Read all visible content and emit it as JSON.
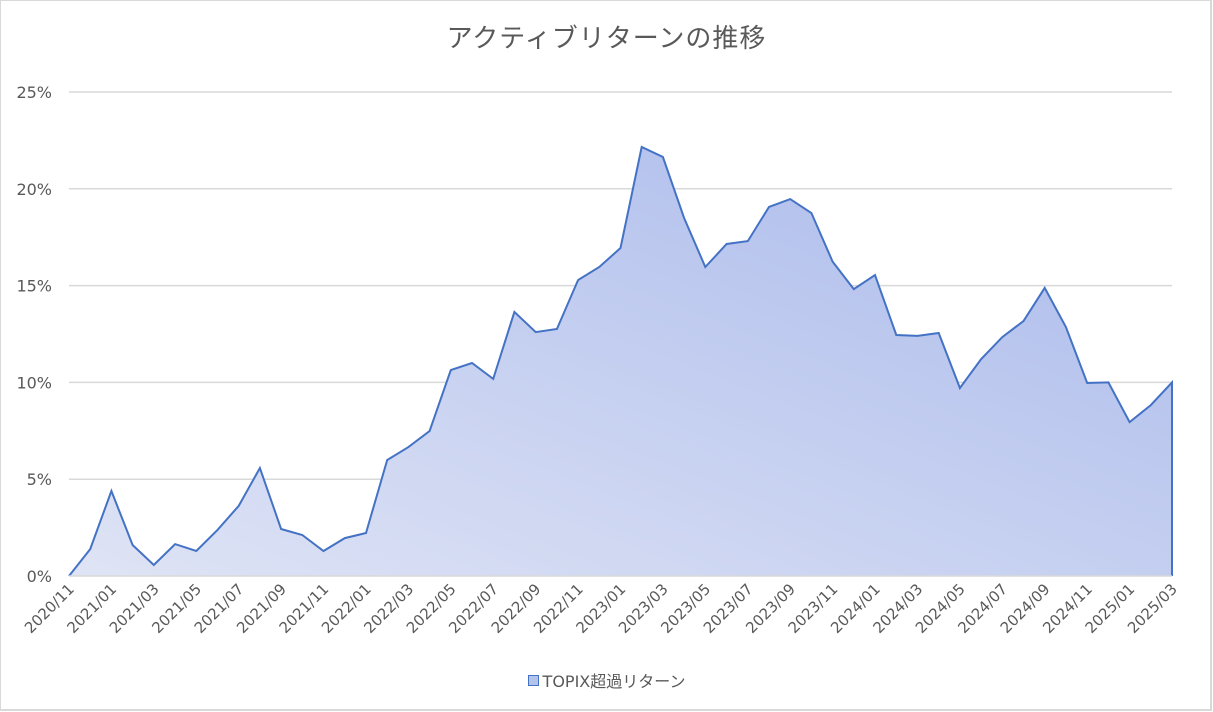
{
  "chart_data": {
    "type": "area",
    "title": "アクティブリターンの推移",
    "xlabel": "",
    "ylabel": "",
    "ylim": [
      0,
      0.25
    ],
    "y_ticks": [
      "0%",
      "5%",
      "10%",
      "15%",
      "20%",
      "25%"
    ],
    "y_tick_values": [
      0,
      5,
      10,
      15,
      20,
      25
    ],
    "grid": true,
    "legend_position": "bottom",
    "x_tick_labels": [
      "2020/11",
      "2021/01",
      "2021/03",
      "2021/05",
      "2021/07",
      "2021/09",
      "2021/11",
      "2022/01",
      "2022/03",
      "2022/05",
      "2022/07",
      "2022/09",
      "2022/11",
      "2023/01",
      "2023/03",
      "2023/05",
      "2023/07",
      "2023/09",
      "2023/11",
      "2024/01",
      "2024/03",
      "2024/05",
      "2024/07",
      "2024/09",
      "2024/11",
      "2025/01",
      "2025/03"
    ],
    "x": [
      "2020/11",
      "2020/12",
      "2021/01",
      "2021/02",
      "2021/03",
      "2021/04",
      "2021/05",
      "2021/06",
      "2021/07",
      "2021/08",
      "2021/09",
      "2021/10",
      "2021/11",
      "2021/12",
      "2022/01",
      "2022/02",
      "2022/03",
      "2022/04",
      "2022/05",
      "2022/06",
      "2022/07",
      "2022/08",
      "2022/09",
      "2022/10",
      "2022/11",
      "2022/12",
      "2023/01",
      "2023/02",
      "2023/03",
      "2023/04",
      "2023/05",
      "2023/06",
      "2023/07",
      "2023/08",
      "2023/09",
      "2023/10",
      "2023/11",
      "2023/12",
      "2024/01",
      "2024/02",
      "2024/03",
      "2024/04",
      "2024/05",
      "2024/06",
      "2024/07",
      "2024/08",
      "2024/09",
      "2024/10",
      "2024/11",
      "2024/12",
      "2025/01",
      "2025/02",
      "2025/03"
    ],
    "series": [
      {
        "name": "TOPIX超過リターン",
        "unit": "%",
        "values": [
          0.0,
          1.39,
          4.39,
          1.6,
          0.57,
          1.65,
          1.29,
          2.38,
          3.62,
          5.58,
          2.43,
          2.12,
          1.29,
          1.96,
          2.22,
          5.99,
          6.66,
          7.49,
          10.64,
          11.0,
          10.18,
          13.64,
          12.6,
          12.76,
          15.29,
          15.96,
          16.94,
          22.16,
          21.64,
          18.49,
          15.96,
          17.15,
          17.3,
          19.06,
          19.47,
          18.75,
          16.24,
          14.82,
          15.55,
          12.45,
          12.4,
          12.55,
          9.71,
          11.2,
          12.34,
          13.17,
          14.88,
          12.86,
          9.97,
          10.0,
          7.95,
          8.83,
          10.0
        ]
      }
    ],
    "colors": {
      "line": "#4472c4",
      "fill_start": "#dfe4f5",
      "fill_end": "#a9b9eb",
      "grid": "#d9d9d9",
      "text": "#595959"
    }
  },
  "legend": {
    "label": "TOPIX超過リターン"
  }
}
